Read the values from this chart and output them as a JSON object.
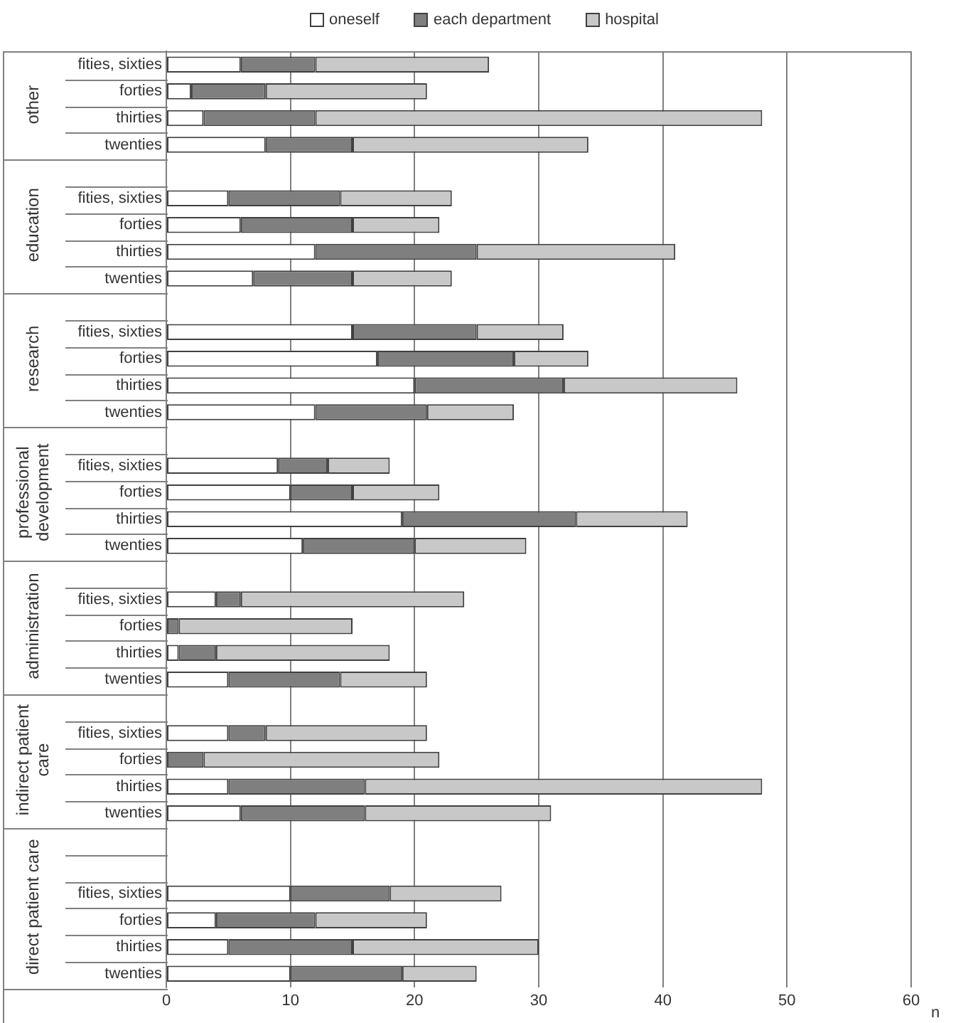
{
  "chart_data": {
    "type": "bar",
    "orientation": "horizontal",
    "stacked": true,
    "categories": [
      "fities, sixties",
      "forties",
      "thirties",
      "twenties",
      null,
      "fities, sixties",
      "forties",
      "thirties",
      "twenties",
      null,
      "fities, sixties",
      "forties",
      "thirties",
      "twenties",
      null,
      "fities, sixties",
      "forties",
      "thirties",
      "twenties",
      null,
      "fities, sixties",
      "forties",
      "thirties",
      "twenties",
      null,
      "fities, sixties",
      "forties",
      "thirties",
      "twenties",
      null,
      null,
      "fities, sixties",
      "forties",
      "thirties",
      "twenties"
    ],
    "series": [
      {
        "name": "oneself",
        "color": "#ffffff",
        "values": [
          6,
          2,
          3,
          8,
          null,
          5,
          6,
          12,
          7,
          null,
          15,
          17,
          20,
          12,
          null,
          9,
          10,
          19,
          11,
          null,
          4,
          0,
          1,
          5,
          null,
          5,
          0,
          5,
          6,
          null,
          null,
          10,
          4,
          5,
          10
        ]
      },
      {
        "name": "each department",
        "color": "#7f7f7f",
        "values": [
          6,
          6,
          9,
          7,
          null,
          9,
          9,
          13,
          8,
          null,
          10,
          11,
          12,
          9,
          null,
          4,
          5,
          14,
          9,
          null,
          2,
          1,
          3,
          9,
          null,
          3,
          3,
          11,
          10,
          null,
          null,
          8,
          8,
          10,
          9
        ]
      },
      {
        "name": "hospital",
        "color": "#c8c8c8",
        "values": [
          14,
          13,
          36,
          19,
          null,
          9,
          7,
          16,
          8,
          null,
          7,
          6,
          14,
          7,
          null,
          5,
          7,
          9,
          9,
          null,
          18,
          14,
          14,
          7,
          null,
          13,
          19,
          32,
          15,
          null,
          null,
          9,
          9,
          15,
          6
        ]
      }
    ],
    "annotations": [
      "other",
      "education",
      "research",
      "professional development",
      "administration",
      "indirect patient care",
      "direct patient care"
    ],
    "xlabel": "n",
    "xlim": [
      0,
      60
    ],
    "xticks": [
      0,
      10,
      20,
      30,
      40,
      50,
      60
    ],
    "grid": "x",
    "legend": "top"
  }
}
